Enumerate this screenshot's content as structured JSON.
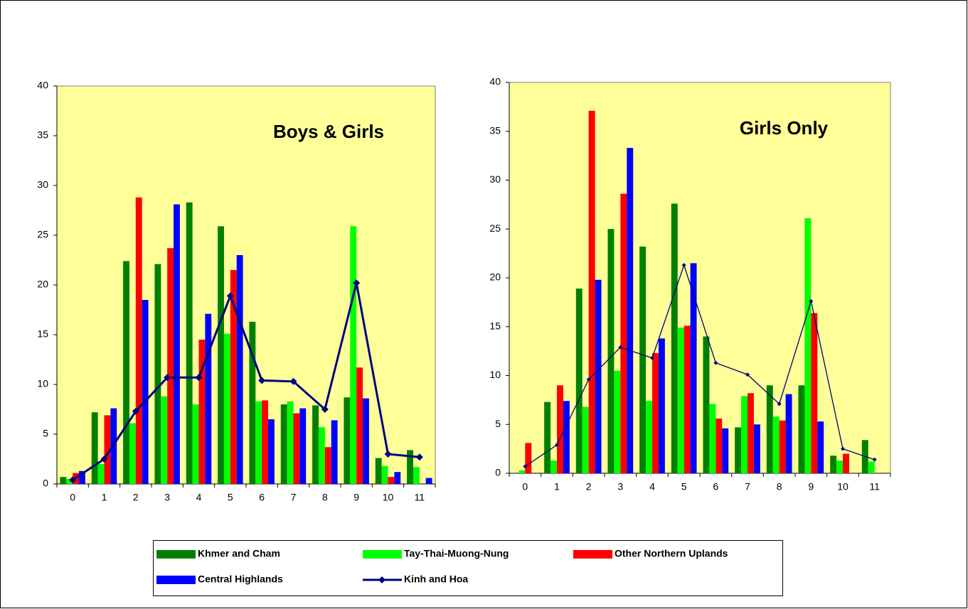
{
  "chart_data": [
    {
      "type": "bar",
      "title": "Boys & Girls",
      "categories": [
        "0",
        "1",
        "2",
        "3",
        "4",
        "5",
        "6",
        "7",
        "8",
        "9",
        "10",
        "11"
      ],
      "ylim": [
        0,
        40
      ],
      "yticks": [
        0,
        5,
        10,
        15,
        20,
        25,
        30,
        35,
        40
      ],
      "series": [
        {
          "name": "Khmer and Cham",
          "color": "#008000",
          "values": [
            0.7,
            7.2,
            22.4,
            22.1,
            28.3,
            25.9,
            16.3,
            8.0,
            7.9,
            8.7,
            2.6,
            3.4
          ]
        },
        {
          "name": "Tay-Thai-Muong-Nung",
          "color": "#00ff00",
          "values": [
            0.5,
            2.0,
            6.1,
            8.8,
            8.0,
            15.1,
            8.3,
            8.3,
            5.7,
            25.9,
            1.8,
            1.7
          ]
        },
        {
          "name": "Other Northern Uplands",
          "color": "#ff0000",
          "values": [
            1.1,
            6.9,
            28.8,
            23.7,
            14.5,
            21.5,
            8.4,
            7.1,
            3.7,
            11.7,
            0.7,
            0
          ]
        },
        {
          "name": "Central Highlands",
          "color": "#0000ff",
          "values": [
            1.3,
            7.6,
            18.5,
            28.1,
            17.1,
            23.0,
            6.5,
            7.6,
            6.4,
            8.6,
            1.2,
            0.6
          ]
        },
        {
          "name": "Kinh and Hoa",
          "type": "line",
          "color": "#000080",
          "values": [
            0.4,
            2.5,
            7.3,
            10.7,
            10.7,
            18.9,
            10.4,
            10.3,
            7.5,
            20.2,
            3.0,
            2.7
          ]
        }
      ]
    },
    {
      "type": "bar",
      "title": "Girls Only",
      "categories": [
        "0",
        "1",
        "2",
        "3",
        "4",
        "5",
        "6",
        "7",
        "8",
        "9",
        "10",
        "11"
      ],
      "ylim": [
        0,
        40
      ],
      "yticks": [
        0,
        5,
        10,
        15,
        20,
        25,
        30,
        35,
        40
      ],
      "series": [
        {
          "color": "#008000",
          "values": [
            0,
            7.3,
            18.9,
            25.0,
            23.2,
            27.6,
            14.0,
            4.7,
            9.0,
            9.0,
            1.8,
            3.4
          ]
        },
        {
          "color": "#00ff00",
          "values": [
            0.3,
            1.3,
            6.8,
            10.5,
            7.4,
            14.9,
            7.1,
            7.9,
            5.8,
            26.1,
            1.3,
            1.2
          ]
        },
        {
          "color": "#ff0000",
          "values": [
            3.1,
            9.0,
            37.1,
            28.6,
            12.3,
            15.1,
            5.6,
            8.2,
            5.4,
            16.4,
            2.0,
            0
          ]
        },
        {
          "color": "#0000ff",
          "values": [
            0,
            7.4,
            19.8,
            33.3,
            13.8,
            21.5,
            4.6,
            5.0,
            8.1,
            5.3,
            0,
            0
          ]
        },
        {
          "type": "line",
          "color": "#000080",
          "values": [
            0.7,
            2.9,
            9.6,
            12.9,
            11.8,
            21.3,
            11.3,
            10.1,
            7.1,
            17.6,
            2.5,
            1.4
          ]
        }
      ]
    }
  ]
}
